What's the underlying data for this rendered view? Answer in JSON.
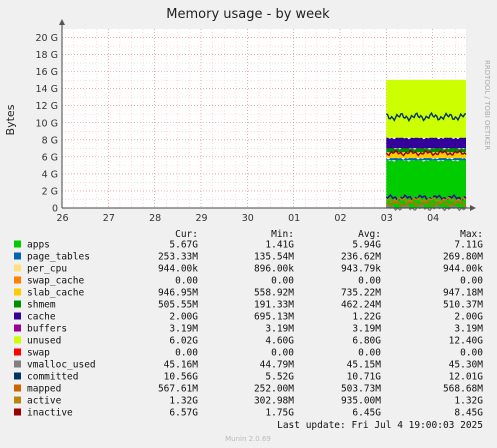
{
  "chart_data": {
    "type": "area",
    "title": "Memory usage - by week",
    "ylabel": "Bytes",
    "watermark": "RRDTOOL / TOBI OETIKER",
    "y_ticks": [
      "0",
      "2 G",
      "4 G",
      "6 G",
      "8 G",
      "10 G",
      "12 G",
      "14 G",
      "16 G",
      "18 G",
      "20 G"
    ],
    "ylim": [
      0,
      21
    ],
    "x_ticks": [
      "26",
      "27",
      "28",
      "29",
      "30",
      "01",
      "02",
      "03",
      "04"
    ],
    "xlim": [
      0,
      8.72
    ],
    "data_start": 7.0,
    "grid": true,
    "legend_headers": {
      "cur": "Cur:",
      "min": "Min:",
      "avg": "Avg:",
      "max": "Max:"
    },
    "series": [
      {
        "name": "apps",
        "color": "#00cc00",
        "cur": "5.67G",
        "min": "1.41G",
        "avg": "5.94G",
        "max": "7.11G",
        "level": 5.6
      },
      {
        "name": "page_tables",
        "color": "#0066b3",
        "cur": "253.33M",
        "min": "135.54M",
        "avg": "236.62M",
        "max": "269.80M",
        "level": 0.25
      },
      {
        "name": "per_cpu",
        "color": "#ffe07a",
        "cur": "944.00k",
        "min": "896.00k",
        "avg": "943.79k",
        "max": "944.00k",
        "level": 0.0
      },
      {
        "name": "swap_cache",
        "color": "#ff8000",
        "cur": "0.00",
        "min": "0.00",
        "avg": "0.00",
        "max": "0.00",
        "level": 0.0
      },
      {
        "name": "slab_cache",
        "color": "#ffcc00",
        "cur": "946.95M",
        "min": "558.92M",
        "avg": "735.22M",
        "max": "947.18M",
        "level": 0.7
      },
      {
        "name": "shmem",
        "color": "#008f00",
        "cur": "505.55M",
        "min": "191.33M",
        "avg": "462.24M",
        "max": "510.37M",
        "level": 0.46
      },
      {
        "name": "cache",
        "color": "#330099",
        "cur": "2.00G",
        "min": "695.13M",
        "avg": "1.22G",
        "max": "2.00G",
        "level": 1.22
      },
      {
        "name": "buffers",
        "color": "#990099",
        "cur": "3.19M",
        "min": "3.19M",
        "avg": "3.19M",
        "max": "3.19M",
        "level": 0.0
      },
      {
        "name": "unused",
        "color": "#ccff00",
        "cur": "6.02G",
        "min": "4.60G",
        "avg": "6.80G",
        "max": "12.40G",
        "level": 6.8
      },
      {
        "name": "swap",
        "color": "#ff0000",
        "cur": "0.00",
        "min": "0.00",
        "avg": "0.00",
        "max": "0.00",
        "level": 0.0
      },
      {
        "name": "vmalloc_used",
        "color": "#808080",
        "cur": "45.16M",
        "min": "44.79M",
        "avg": "45.15M",
        "max": "45.30M",
        "level": 0.0
      },
      {
        "name": "committed",
        "color": "#003366",
        "cur": "10.56G",
        "min": "5.52G",
        "avg": "10.71G",
        "max": "12.01G",
        "level": 10.7
      },
      {
        "name": "mapped",
        "color": "#cc6600",
        "cur": "567.61M",
        "min": "252.00M",
        "avg": "503.73M",
        "max": "568.68M",
        "level": 0.5
      },
      {
        "name": "active",
        "color": "#b8860b",
        "cur": "1.32G",
        "min": "302.98M",
        "avg": "935.00M",
        "max": "1.32G",
        "level": 0.94
      },
      {
        "name": "inactive",
        "color": "#990000",
        "cur": "6.57G",
        "min": "1.75G",
        "avg": "6.45G",
        "max": "8.45G",
        "level": 6.45
      }
    ],
    "last_update": "Last update: Fri Jul  4 19:00:03 2025",
    "footer": "Munin 2.0.69"
  }
}
